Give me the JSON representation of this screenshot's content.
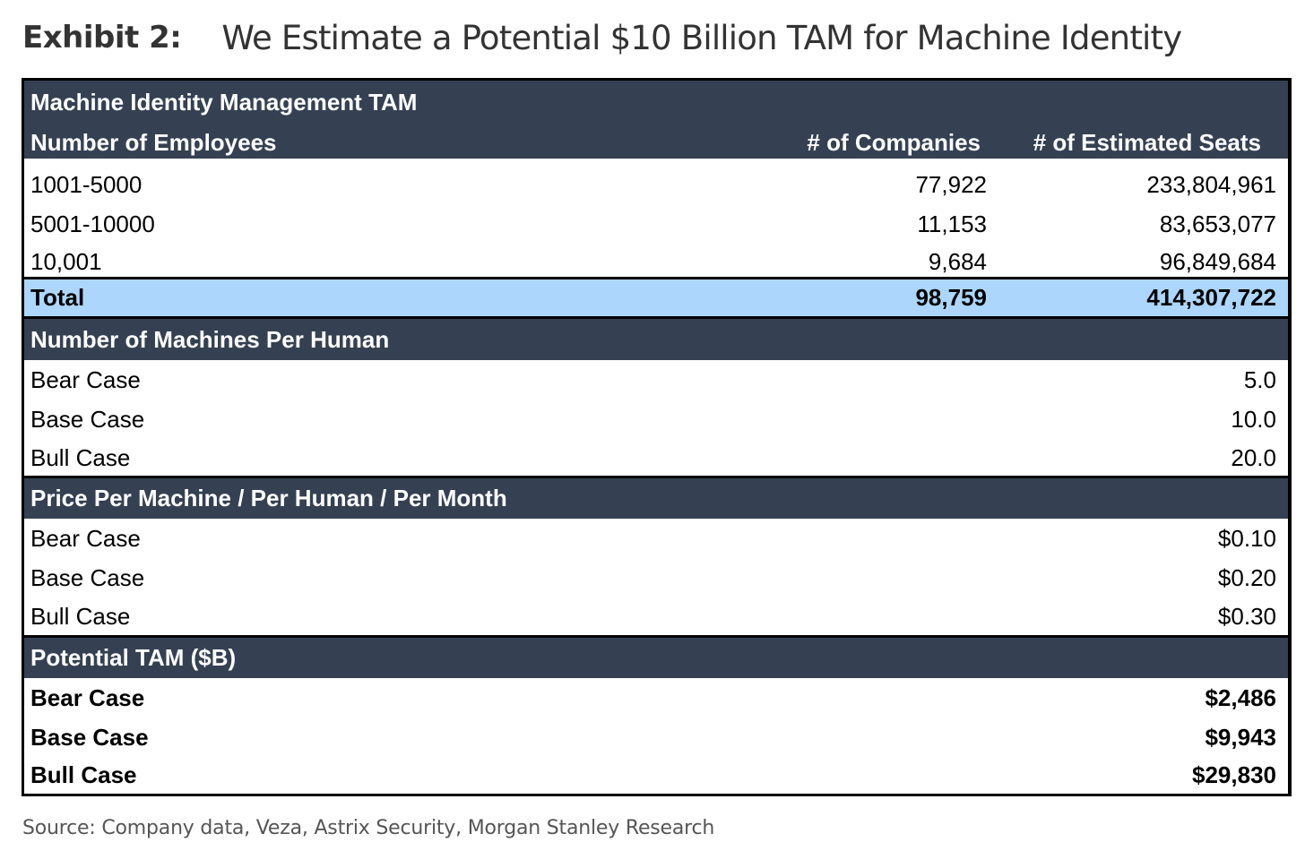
{
  "exhibit": {
    "label": "Exhibit 2:",
    "title": "We Estimate a Potential $10 Billion TAM for Machine Identity"
  },
  "table": {
    "title": "Machine Identity Management TAM",
    "header": {
      "col1": "Number of Employees",
      "col2": "# of Companies",
      "col3": "# of Estimated Seats"
    },
    "employee_rows": [
      {
        "employees": "1001-5000",
        "companies": "77,922",
        "seats": "233,804,961"
      },
      {
        "employees": "5001-10000",
        "companies": "11,153",
        "seats": "83,653,077"
      },
      {
        "employees": "10,001",
        "companies": "9,684",
        "seats": "96,849,684"
      }
    ],
    "total": {
      "label": "Total",
      "companies": "98,759",
      "seats": "414,307,722"
    },
    "machines_per_human": {
      "title": "Number of Machines Per Human",
      "rows": [
        {
          "case": "Bear Case",
          "value": "5.0"
        },
        {
          "case": "Base Case",
          "value": "10.0"
        },
        {
          "case": "Bull Case",
          "value": "20.0"
        }
      ]
    },
    "price_per_machine": {
      "title": "Price Per Machine / Per Human / Per Month",
      "rows": [
        {
          "case": "Bear Case",
          "value": "$0.10"
        },
        {
          "case": "Base Case",
          "value": "$0.20"
        },
        {
          "case": "Bull Case",
          "value": "$0.30"
        }
      ]
    },
    "potential_tam": {
      "title": "Potential TAM ($B)",
      "rows": [
        {
          "case": "Bear Case",
          "value": "$2,486"
        },
        {
          "case": "Base Case",
          "value": "$9,943"
        },
        {
          "case": "Bull Case",
          "value": "$29,830"
        }
      ]
    }
  },
  "source": "Source: Company data, Veza, Astrix Security, Morgan Stanley Research",
  "colors": {
    "header_dark": "#354152",
    "total_highlight": "#acd6fb"
  }
}
